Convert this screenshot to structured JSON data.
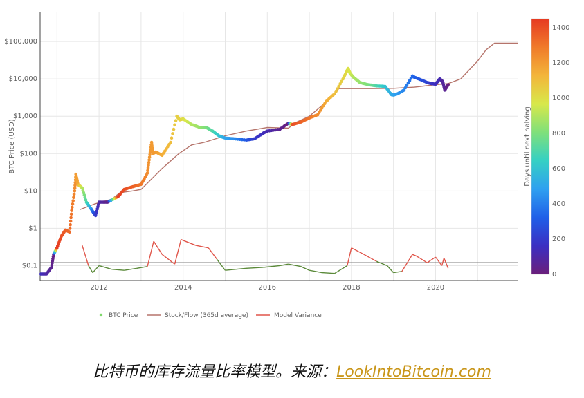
{
  "chart_data": {
    "type": "scatter",
    "ylabel": "BTC Price (USD)",
    "y_scale": "log",
    "ylim": [
      0.04,
      600000
    ],
    "xlim": [
      2010.6,
      2021.95
    ],
    "x_ticks": [
      2012,
      2014,
      2016,
      2018,
      2020
    ],
    "y_ticks": [
      {
        "value": 0.1,
        "label": "$0.1"
      },
      {
        "value": 1,
        "label": "$1"
      },
      {
        "value": 10,
        "label": "$10"
      },
      {
        "value": 100,
        "label": "$100"
      },
      {
        "value": 1000,
        "label": "$1,000"
      },
      {
        "value": 10000,
        "label": "$10,000"
      },
      {
        "value": 100000,
        "label": "$100,000"
      }
    ],
    "reference_line": 0.12,
    "legend": {
      "placement": "bottom-center",
      "items": [
        {
          "label": "BTC Price",
          "color": "#7fd86b",
          "symbol": "dot"
        },
        {
          "label": "Stock/Flow (365d average)",
          "color": "#b5746b",
          "symbol": "line"
        },
        {
          "label": "Model Variance",
          "color": "#e0554a",
          "symbol": "line"
        }
      ]
    },
    "colorbar": {
      "title": "Days until next halving",
      "ticks": [
        0,
        200,
        400,
        600,
        800,
        1000,
        1200,
        1400
      ],
      "range": [
        0,
        1450
      ],
      "colors": [
        "#6b1f7a",
        "#3b2fc2",
        "#1f5fe8",
        "#2fa0f0",
        "#35d0c4",
        "#7fe07a",
        "#d8e84a",
        "#f3b53a",
        "#f07a2a",
        "#e63a22"
      ]
    },
    "series": [
      {
        "name": "BTC Price",
        "x": [
          2010.62,
          2010.75,
          2010.87,
          2010.92,
          2011.0,
          2011.1,
          2011.2,
          2011.3,
          2011.35,
          2011.42,
          2011.45,
          2011.5,
          2011.6,
          2011.7,
          2011.8,
          2011.87,
          2011.92,
          2012.0,
          2012.2,
          2012.45,
          2012.6,
          2012.8,
          2013.0,
          2013.15,
          2013.2,
          2013.25,
          2013.28,
          2013.35,
          2013.5,
          2013.7,
          2013.85,
          2013.92,
          2014.0,
          2014.2,
          2014.4,
          2014.55,
          2014.7,
          2014.85,
          2015.0,
          2015.2,
          2015.5,
          2015.7,
          2015.9,
          2016.0,
          2016.3,
          2016.5,
          2016.6,
          2016.8,
          2017.0,
          2017.2,
          2017.4,
          2017.6,
          2017.8,
          2017.92,
          2017.97,
          2018.05,
          2018.2,
          2018.4,
          2018.6,
          2018.8,
          2018.95,
          2019.0,
          2019.1,
          2019.25,
          2019.45,
          2019.5,
          2019.6,
          2019.8,
          2019.9,
          2020.0,
          2020.1,
          2020.17,
          2020.22,
          2020.3
        ],
        "values": [
          0.06,
          0.06,
          0.09,
          0.2,
          0.3,
          0.6,
          0.9,
          0.8,
          3,
          10,
          28,
          15,
          12,
          5,
          3.5,
          2.6,
          2.2,
          5,
          5,
          7,
          11,
          13,
          15,
          30,
          80,
          200,
          100,
          110,
          90,
          200,
          1000,
          800,
          850,
          600,
          500,
          500,
          400,
          300,
          260,
          250,
          230,
          250,
          350,
          400,
          450,
          650,
          600,
          700,
          900,
          1100,
          2500,
          4000,
          10000,
          19000,
          14000,
          11000,
          8000,
          7000,
          6500,
          6300,
          3800,
          3700,
          4000,
          5000,
          12000,
          11000,
          10000,
          8000,
          7500,
          7200,
          10000,
          8500,
          5000,
          7000
        ],
        "days": [
          150,
          100,
          50,
          20,
          1450,
          1400,
          1360,
          1330,
          1300,
          1250,
          1200,
          1170,
          900,
          700,
          500,
          300,
          200,
          100,
          40,
          1440,
          1400,
          1360,
          1300,
          1240,
          1210,
          1200,
          1200,
          1200,
          1150,
          1100,
          1050,
          1040,
          1000,
          900,
          850,
          800,
          700,
          600,
          500,
          440,
          300,
          200,
          150,
          120,
          50,
          10,
          1400,
          1350,
          1300,
          1240,
          1150,
          1100,
          1040,
          990,
          960,
          900,
          850,
          800,
          700,
          600,
          520,
          500,
          470,
          420,
          350,
          330,
          300,
          230,
          180,
          150,
          130,
          80,
          60,
          10
        ]
      },
      {
        "name": "Stock/Flow (365d average)",
        "x": [
          2011.55,
          2011.9,
          2012.3,
          2012.5,
          2012.8,
          2013.0,
          2013.5,
          2013.9,
          2014.2,
          2014.5,
          2015.0,
          2015.5,
          2016.0,
          2016.5,
          2016.7,
          2017.0,
          2017.5,
          2017.7,
          2018.0,
          2018.5,
          2019.0,
          2019.5,
          2020.0,
          2020.3,
          2020.6,
          2021.0,
          2021.2,
          2021.4,
          2021.5,
          2021.95
        ],
        "values": [
          3.2,
          4.5,
          6,
          9,
          10,
          11,
          40,
          100,
          170,
          200,
          300,
          400,
          500,
          480,
          700,
          1000,
          3000,
          5500,
          5500,
          5500,
          5600,
          6000,
          7000,
          7500,
          10000,
          30000,
          60000,
          90000,
          90000,
          90000
        ]
      },
      {
        "name": "Model Variance",
        "x": [
          2011.6,
          2011.75,
          2011.85,
          2012.0,
          2012.3,
          2012.6,
          2012.9,
          2013.15,
          2013.3,
          2013.5,
          2013.8,
          2013.95,
          2014.3,
          2014.6,
          2014.8,
          2015.0,
          2015.5,
          2015.9,
          2016.3,
          2016.5,
          2016.8,
          2017.0,
          2017.3,
          2017.6,
          2017.9,
          2018.0,
          2018.3,
          2018.6,
          2018.85,
          2019.0,
          2019.2,
          2019.45,
          2019.55,
          2019.8,
          2020.0,
          2020.15,
          2020.2,
          2020.3
        ],
        "values": [
          0.35,
          0.1,
          0.065,
          0.1,
          0.08,
          0.075,
          0.085,
          0.095,
          0.45,
          0.2,
          0.11,
          0.5,
          0.35,
          0.3,
          0.15,
          0.075,
          0.085,
          0.09,
          0.1,
          0.11,
          0.095,
          0.075,
          0.065,
          0.062,
          0.1,
          0.3,
          0.2,
          0.13,
          0.1,
          0.065,
          0.07,
          0.2,
          0.18,
          0.12,
          0.17,
          0.1,
          0.16,
          0.085
        ]
      }
    ]
  },
  "caption": {
    "text": "比特币的库存流量比率模型。来源：",
    "link": "LookIntoBitcoin.com"
  }
}
